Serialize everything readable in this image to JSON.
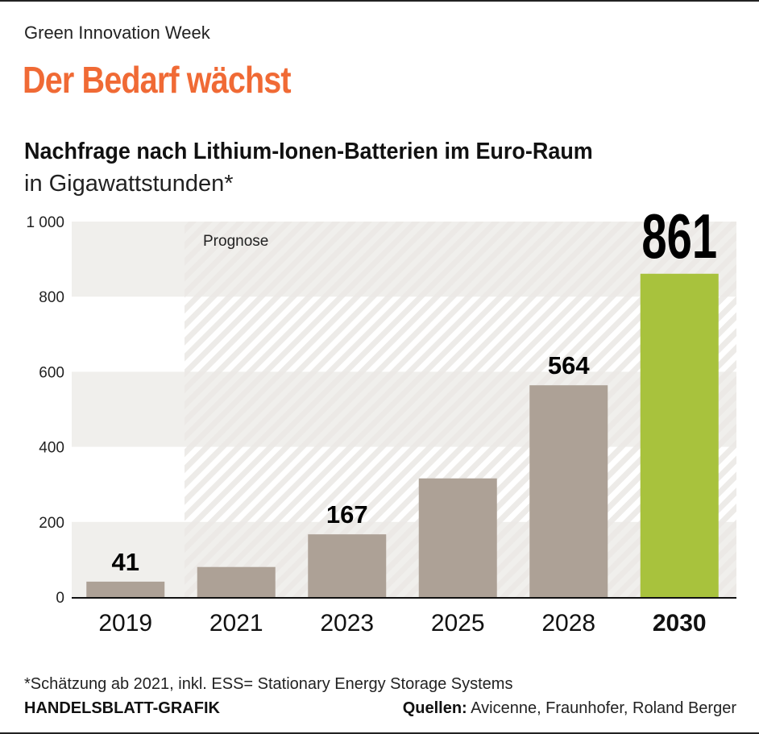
{
  "header": {
    "kicker": "Green Innovation Week",
    "headline": "Der Bedarf wächst"
  },
  "chart_data": {
    "type": "bar",
    "title": "Nachfrage nach Lithium-Ionen-Batterien im Euro-Raum",
    "subtitle": "in Gigawattstunden*",
    "categories": [
      "2019",
      "2021",
      "2023",
      "2025",
      "2028",
      "2030"
    ],
    "values": [
      41,
      80,
      167,
      316,
      564,
      861
    ],
    "data_labels": [
      "41",
      "",
      "167",
      "",
      "564",
      "861"
    ],
    "ylim": [
      0,
      1000
    ],
    "yticks": [
      0,
      200,
      400,
      600,
      800,
      1000
    ],
    "ytick_labels": [
      "0",
      "200",
      "400",
      "600",
      "800",
      "1 000"
    ],
    "forecast_label": "Prognose",
    "forecast_from": "2021",
    "colors": {
      "bar": "#ada196",
      "highlight": "#a8c23d",
      "band": "#f0efec",
      "hatch": "#e3e1dd"
    }
  },
  "footer": {
    "note": "*Schätzung ab 2021, inkl. ESS= Stationary Energy Storage Systems",
    "brand": "HANDELSBLATT-GRAFIK",
    "source_label": "Quellen:",
    "source_text": " Avicenne, Fraunhofer, Roland Berger"
  }
}
